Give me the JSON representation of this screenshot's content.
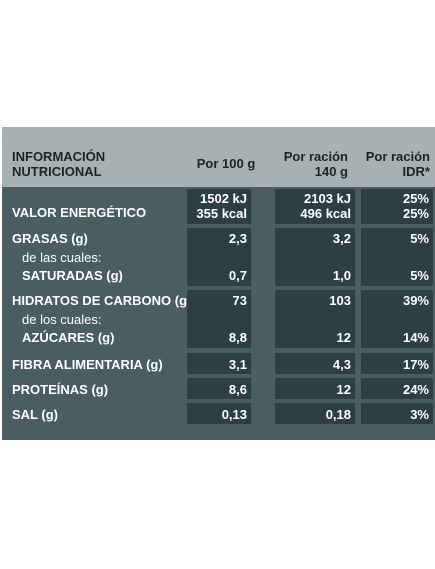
{
  "header": {
    "label_line1": "INFORMACIÓN",
    "label_line2": "NUTRICIONAL",
    "per100": "Por 100 g",
    "racion_line1": "Por ración",
    "racion_line2": "140 g",
    "idr_line1": "Por ración",
    "idr_line2": "IDR*"
  },
  "rows": {
    "energia": {
      "label": "VALOR ENERGÉTICO",
      "per100_kj": "1502 kJ",
      "per100_kcal": "355 kcal",
      "racion_kj": "2103 kJ",
      "racion_kcal": "496 kcal",
      "idr_kj": "25%",
      "idr_kcal": "25%"
    },
    "grasas": {
      "label": "GRASAS (g)",
      "sub_label1": "de las cuales:",
      "sub_label2": "SATURADAS (g)",
      "per100": "2,3",
      "racion": "3,2",
      "idr": "5%",
      "sat_per100": "0,7",
      "sat_racion": "1,0",
      "sat_idr": "5%"
    },
    "hidratos": {
      "label": "HIDRATOS DE CARBONO (g)",
      "sub_label1": "de los cuales:",
      "sub_label2": "AZÚCARES (g)",
      "per100": "73",
      "racion": "103",
      "idr": "39%",
      "az_per100": "8,8",
      "az_racion": "12",
      "az_idr": "14%"
    },
    "fibra": {
      "label": "FIBRA ALIMENTARIA (g)",
      "per100": "3,1",
      "racion": "4,3",
      "idr": "17%"
    },
    "proteinas": {
      "label": "PROTEÍNAS (g)",
      "per100": "8,6",
      "racion": "12",
      "idr": "24%"
    },
    "sal": {
      "label": "SAL (g)",
      "per100": "0,13",
      "racion": "0,18",
      "idr": "3%"
    }
  },
  "colors": {
    "panel": "#4a5d63",
    "header": "#a6b1b4",
    "cell": "#2e3f44",
    "text": "#ffffff"
  }
}
